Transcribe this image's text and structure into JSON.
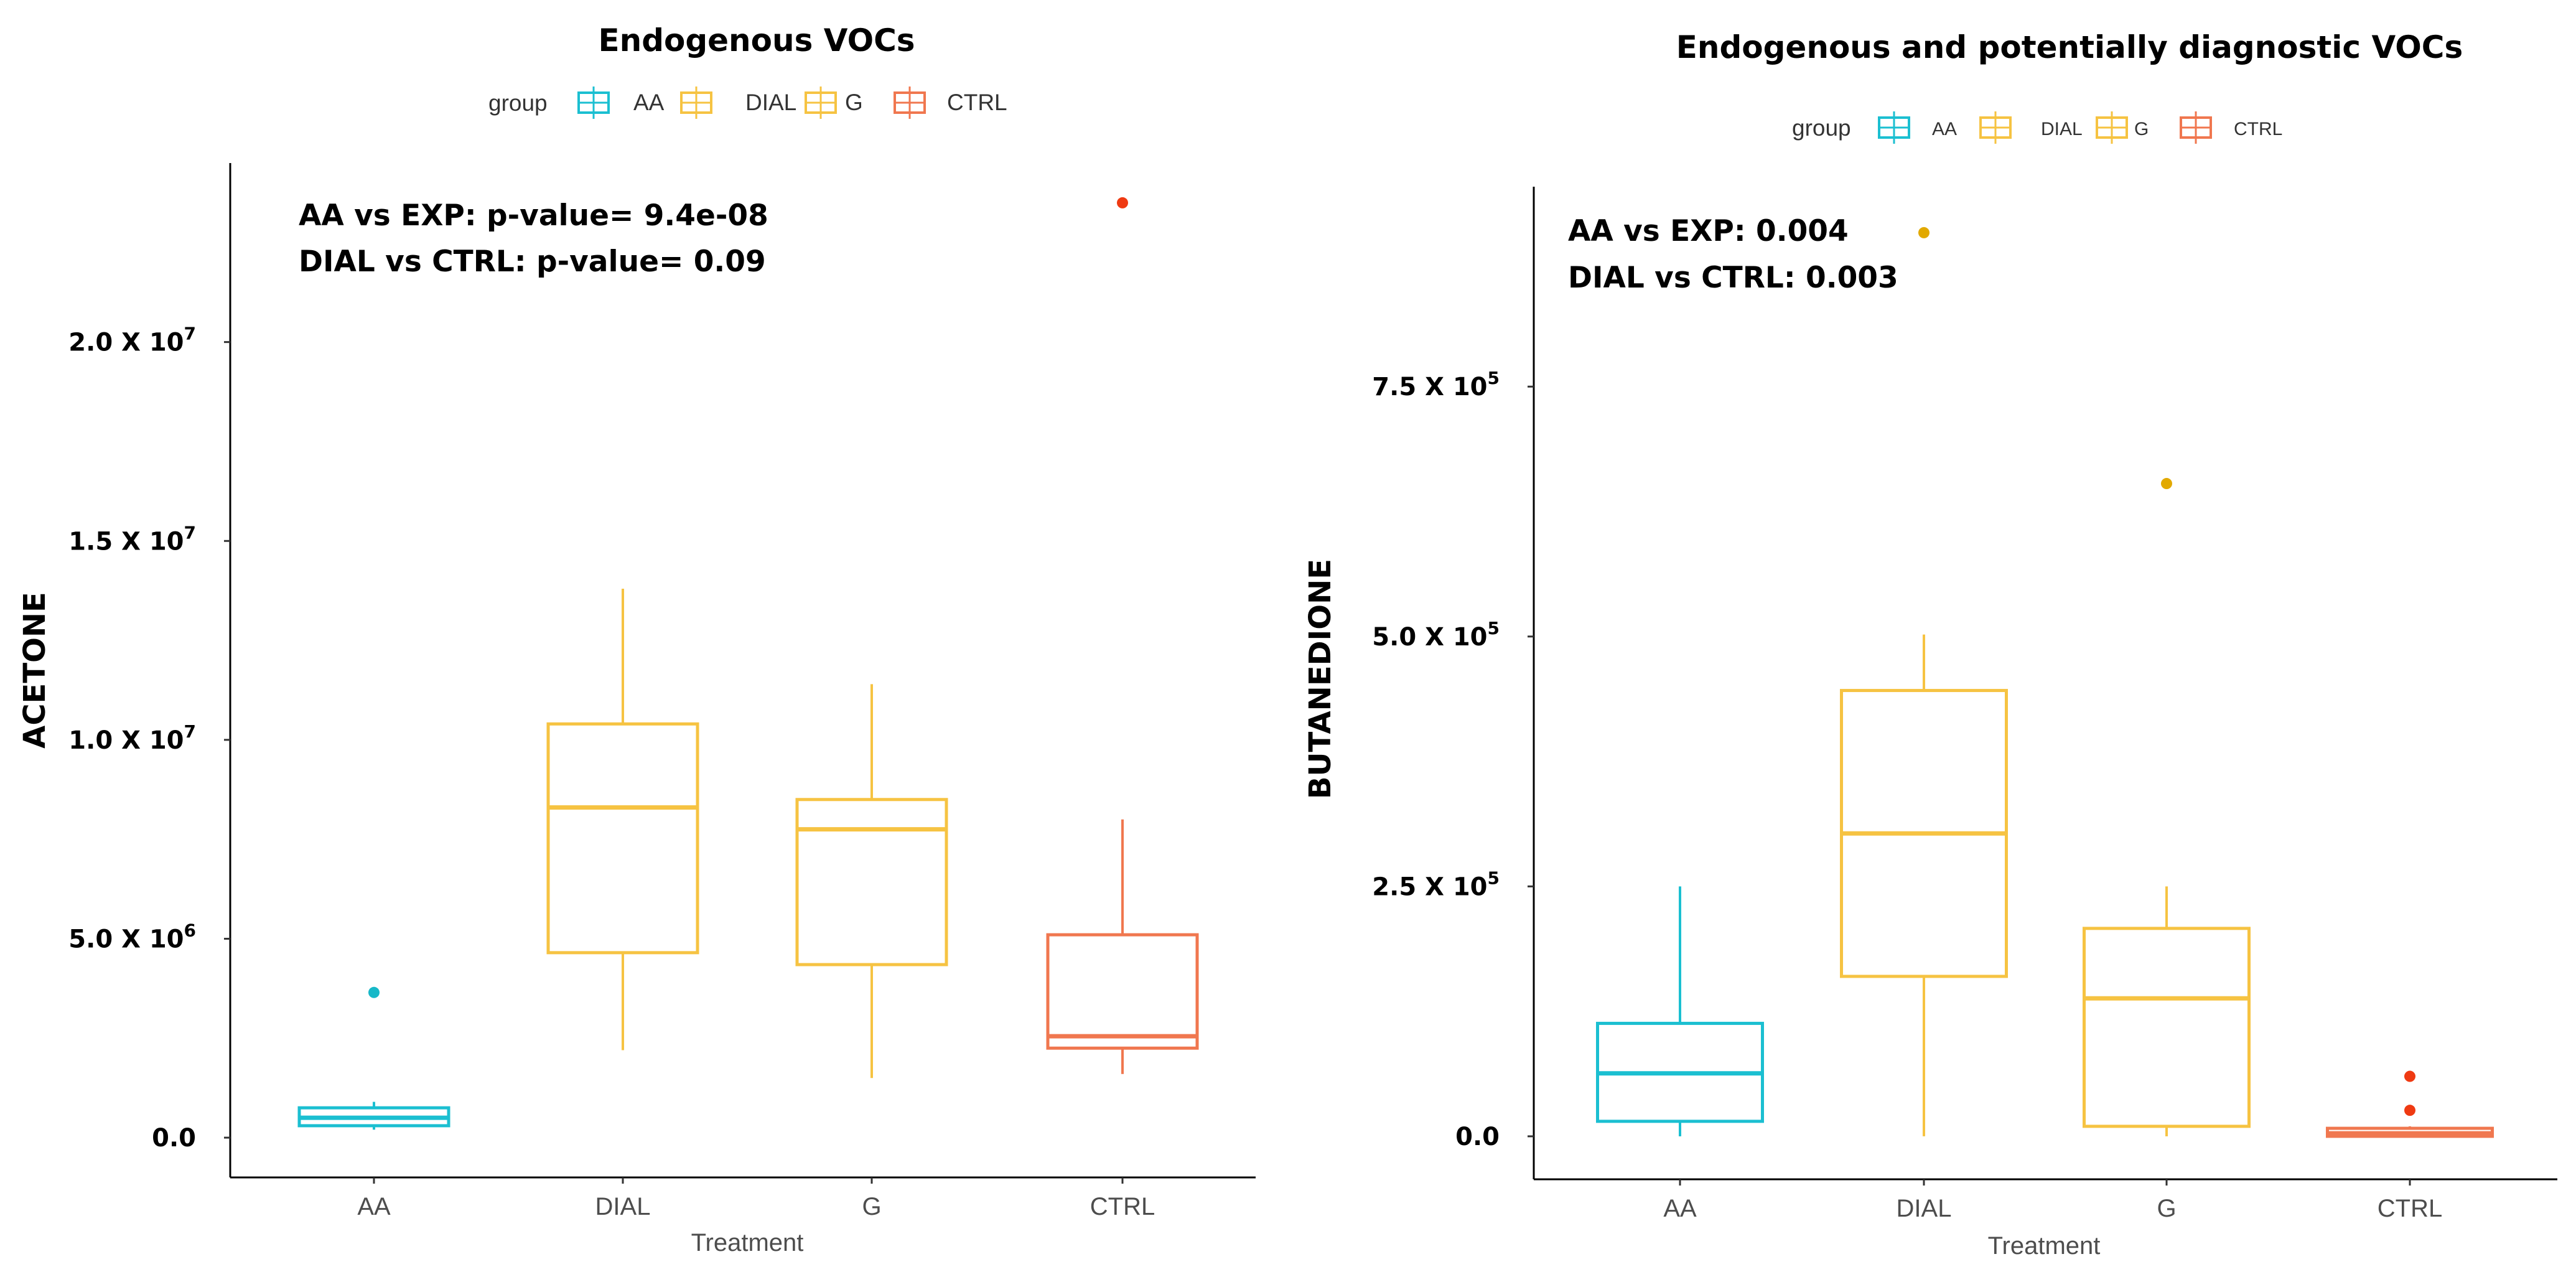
{
  "colors": {
    "AA": "#1bbfd1",
    "DIAL": "#f6c342",
    "G": "#f6c342",
    "CTRL": "#f0774f",
    "out_AA": "#17b8c8",
    "out_DIAL": "#e2a900",
    "out_G": "#e2a900",
    "out_CTRL": "#ef3a12"
  },
  "chart_data": [
    {
      "type": "box",
      "title": "Endogenous VOCs",
      "legend": {
        "title": "group",
        "entries": [
          "AA",
          "DIAL",
          "G",
          "CTRL"
        ]
      },
      "annotations": [
        "AA vs EXP: p-value= 9.4e-08",
        "DIAL vs CTRL: p-value= 0.09"
      ],
      "xlabel": "Treatment",
      "ylabel": "ACETONE",
      "ylim": [
        -1000000,
        24500000
      ],
      "yticks": [
        {
          "value": 0,
          "base": "0.0",
          "exp": ""
        },
        {
          "value": 5000000,
          "base": "5.0 X 10",
          "exp": "6"
        },
        {
          "value": 10000000,
          "base": "1.0 X 10",
          "exp": "7"
        },
        {
          "value": 15000000,
          "base": "1.5 X 10",
          "exp": "7"
        },
        {
          "value": 20000000,
          "base": "2.0 X 10",
          "exp": "7"
        }
      ],
      "categories": [
        "AA",
        "DIAL",
        "G",
        "CTRL"
      ],
      "boxes": [
        {
          "group": "AA",
          "whisker_low": 200000,
          "q1": 300000,
          "median": 500000,
          "q3": 750000,
          "whisker_high": 900000,
          "outliers": [
            3650000
          ]
        },
        {
          "group": "DIAL",
          "whisker_low": 2200000,
          "q1": 4650000,
          "median": 8300000,
          "q3": 10400000,
          "whisker_high": 13800000,
          "outliers": []
        },
        {
          "group": "G",
          "whisker_low": 1500000,
          "q1": 4350000,
          "median": 7750000,
          "q3": 8500000,
          "whisker_high": 11400000,
          "outliers": []
        },
        {
          "group": "CTRL",
          "whisker_low": 1600000,
          "q1": 2250000,
          "median": 2550000,
          "q3": 5100000,
          "whisker_high": 8000000,
          "outliers": [
            23500000
          ]
        }
      ]
    },
    {
      "type": "box",
      "title": "Endogenous and potentially diagnostic VOCs",
      "legend": {
        "title": "group",
        "entries": [
          "AA",
          "DIAL",
          "G",
          "CTRL"
        ]
      },
      "annotations": [
        "AA vs EXP: 0.004",
        "DIAL vs CTRL: 0.003"
      ],
      "xlabel": "Treatment",
      "ylabel": "BUTANEDIONE",
      "ylim": [
        -43000,
        950000
      ],
      "yticks": [
        {
          "value": 0,
          "base": "0.0",
          "exp": ""
        },
        {
          "value": 250000,
          "base": "2.5 X 10",
          "exp": "5"
        },
        {
          "value": 500000,
          "base": "5.0 X 10",
          "exp": "5"
        },
        {
          "value": 750000,
          "base": "7.5 X 10",
          "exp": "5"
        }
      ],
      "categories": [
        "AA",
        "DIAL",
        "G",
        "CTRL"
      ],
      "boxes": [
        {
          "group": "AA",
          "whisker_low": 0,
          "q1": 15000,
          "median": 63000,
          "q3": 113000,
          "whisker_high": 250000,
          "outliers": []
        },
        {
          "group": "DIAL",
          "whisker_low": 0,
          "q1": 160000,
          "median": 303000,
          "q3": 446000,
          "whisker_high": 502000,
          "outliers": [
            904000
          ]
        },
        {
          "group": "G",
          "whisker_low": 0,
          "q1": 10000,
          "median": 138000,
          "q3": 208000,
          "whisker_high": 250000,
          "outliers": [
            653000
          ]
        },
        {
          "group": "CTRL",
          "whisker_low": 0,
          "q1": 0,
          "median": 3000,
          "q3": 8000,
          "whisker_high": 10000,
          "outliers": [
            26000,
            60000
          ]
        }
      ]
    }
  ]
}
